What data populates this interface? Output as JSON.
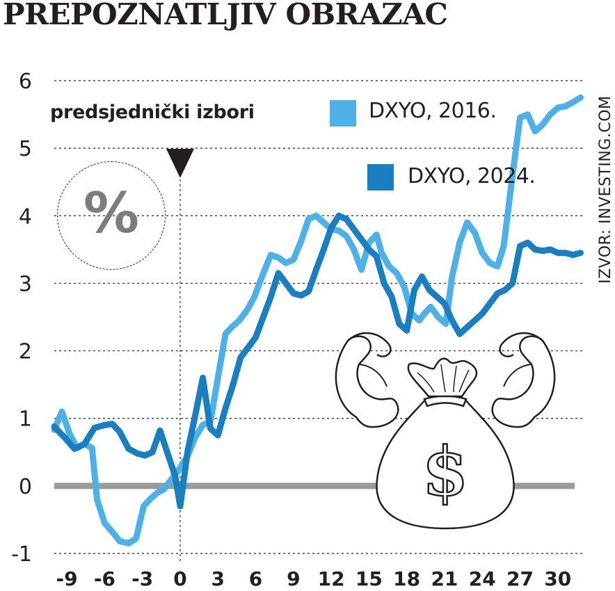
{
  "title": "PREPOZNATLJIV OBRAZAC",
  "source": "IZVOR: INVESTING.COM",
  "annotation": "predsjednički izbori",
  "percent_badge": "%",
  "colors": {
    "dxyo_2016": "#4db0e6",
    "dxyo_2024": "#1a7fbf",
    "zero_line": "#9b9b9b",
    "grid": "#231f20"
  },
  "chart_data": {
    "type": "line",
    "title": "PREPOZNATLJIV OBRAZAC",
    "xlabel": "",
    "ylabel": "",
    "xlim": [
      -10,
      32
    ],
    "ylim": [
      -1,
      6
    ],
    "grid": true,
    "legend_position": "top-right",
    "event_marker_x": 0,
    "xticks": [
      -9,
      -6,
      -3,
      0,
      3,
      6,
      9,
      12,
      15,
      18,
      21,
      24,
      27,
      30
    ],
    "xtick_labels": [
      "-9",
      "-6",
      "-3",
      "0",
      "3",
      "6",
      "9",
      "12",
      "15",
      "18",
      "21",
      "24",
      "27",
      "30"
    ],
    "yticks": [
      -1,
      0,
      1,
      2,
      3,
      4,
      5,
      6
    ],
    "ytick_labels": [
      "-1",
      "0",
      "1",
      "2",
      "3",
      "4",
      "5",
      "6"
    ],
    "series": [
      {
        "name": "DXYO, 2016.",
        "x": [
          -10,
          -9.4,
          -8.8,
          -8.2,
          -7.6,
          -7.0,
          -6.6,
          -6.0,
          -5.3,
          -4.8,
          -4.1,
          -3.5,
          -2.9,
          -2.3,
          -1.8,
          -1.3,
          -0.6,
          0,
          0.6,
          1.2,
          1.8,
          2.4,
          3.0,
          3.6,
          4.1,
          4.7,
          5.3,
          5.9,
          6.5,
          7.2,
          7.8,
          8.4,
          9.0,
          9.6,
          10.2,
          10.8,
          11.4,
          12.0,
          12.6,
          13.2,
          13.8,
          14.4,
          15.0,
          15.6,
          16.0,
          16.6,
          17.2,
          17.8,
          18.4,
          19.0,
          19.4,
          19.9,
          20.5,
          21.1,
          21.6,
          22.2,
          22.8,
          23.4,
          24.0,
          24.6,
          25.2,
          25.7,
          26.4,
          27.0,
          27.6,
          28.2,
          28.8,
          29.4,
          30.0,
          30.6,
          31.2,
          31.8
        ],
        "y": [
          0.83,
          1.1,
          0.78,
          0.56,
          0.62,
          0.56,
          -0.2,
          -0.55,
          -0.7,
          -0.82,
          -0.85,
          -0.78,
          -0.3,
          -0.18,
          -0.1,
          -0.05,
          0.12,
          0.27,
          0.45,
          0.72,
          0.9,
          0.95,
          1.6,
          2.25,
          2.35,
          2.45,
          2.6,
          2.8,
          3.1,
          3.42,
          3.38,
          3.3,
          3.35,
          3.62,
          3.95,
          4.0,
          3.9,
          3.8,
          3.78,
          3.7,
          3.5,
          3.2,
          3.6,
          3.72,
          3.45,
          3.25,
          3.15,
          2.95,
          2.55,
          2.45,
          2.55,
          2.65,
          2.5,
          2.4,
          3.1,
          3.6,
          3.9,
          3.75,
          3.45,
          3.3,
          3.25,
          3.55,
          4.6,
          5.45,
          5.5,
          5.25,
          5.35,
          5.5,
          5.6,
          5.62,
          5.68,
          5.75
        ]
      },
      {
        "name": "DXYO, 2024.",
        "x": [
          -10,
          -9.2,
          -8.4,
          -7.6,
          -6.8,
          -6.0,
          -5.4,
          -4.8,
          -4.1,
          -3.4,
          -2.8,
          -2.2,
          -1.6,
          -1.0,
          -0.4,
          0,
          0.6,
          1.2,
          1.8,
          2.4,
          3.0,
          3.6,
          4.2,
          4.8,
          5.4,
          6.0,
          6.6,
          7.2,
          7.8,
          8.4,
          9.0,
          9.6,
          10.2,
          10.8,
          11.4,
          12.0,
          12.6,
          13.2,
          13.8,
          14.4,
          15.0,
          15.6,
          16.2,
          16.8,
          17.4,
          18.0,
          18.6,
          19.2,
          19.8,
          20.4,
          21.0,
          21.6,
          22.2,
          22.8,
          23.4,
          24.0,
          24.6,
          25.2,
          25.8,
          26.4,
          27.0,
          27.6,
          28.2,
          28.8,
          29.4,
          30.0,
          30.6,
          31.2,
          31.8
        ],
        "y": [
          0.88,
          0.72,
          0.55,
          0.62,
          0.86,
          0.9,
          0.92,
          0.8,
          0.55,
          0.48,
          0.45,
          0.5,
          0.82,
          0.48,
          0.15,
          -0.3,
          0.52,
          1.05,
          1.6,
          0.85,
          0.75,
          1.15,
          1.5,
          1.9,
          2.05,
          2.2,
          2.5,
          2.8,
          3.15,
          3.0,
          2.85,
          2.82,
          2.88,
          3.2,
          3.5,
          3.82,
          4.0,
          3.95,
          3.8,
          3.65,
          3.5,
          3.4,
          3.0,
          2.8,
          2.4,
          2.3,
          2.9,
          3.1,
          2.9,
          2.8,
          2.7,
          2.45,
          2.25,
          2.35,
          2.45,
          2.55,
          2.7,
          2.85,
          2.9,
          3.0,
          3.55,
          3.6,
          3.5,
          3.48,
          3.5,
          3.45,
          3.45,
          3.42,
          3.45
        ]
      }
    ]
  }
}
